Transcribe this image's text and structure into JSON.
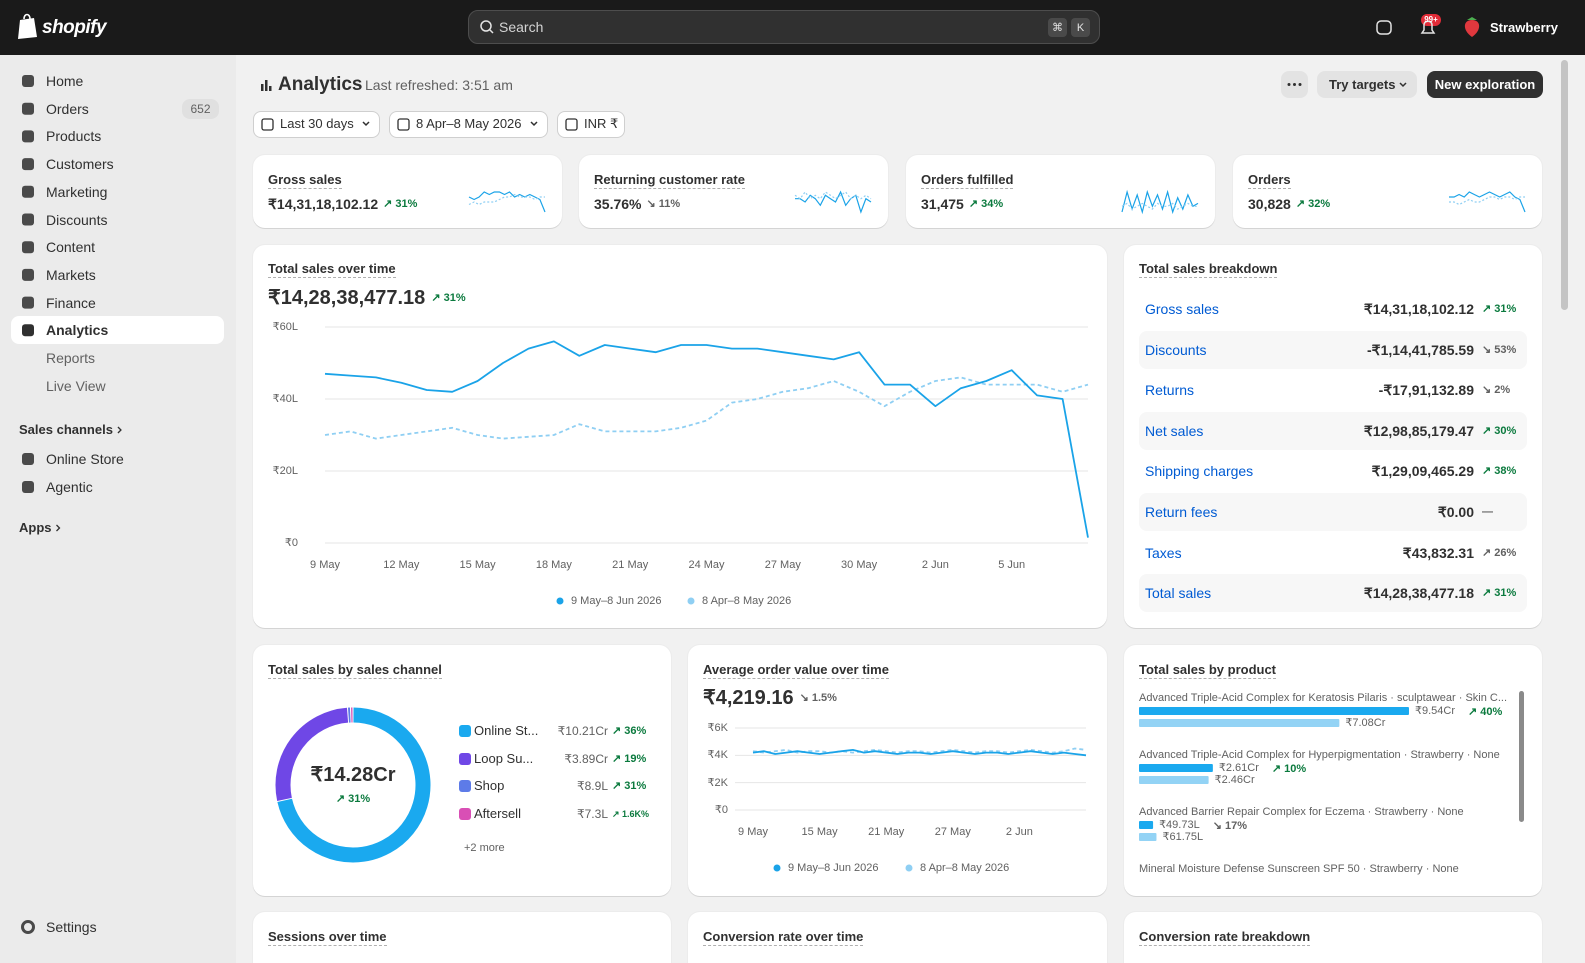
{
  "topbar": {
    "brand": "shopify",
    "search_placeholder": "Search",
    "shortcut": [
      "⌘",
      "K"
    ],
    "notification_badge": "99+",
    "store_name": "Strawberry"
  },
  "sidebar": {
    "nav": [
      {
        "label": "Home"
      },
      {
        "label": "Orders",
        "count": "652"
      },
      {
        "label": "Products"
      },
      {
        "label": "Customers"
      },
      {
        "label": "Marketing"
      },
      {
        "label": "Discounts"
      },
      {
        "label": "Content"
      },
      {
        "label": "Markets"
      },
      {
        "label": "Finance"
      },
      {
        "label": "Analytics",
        "active": true
      }
    ],
    "analytics_sub": [
      "Reports",
      "Live View"
    ],
    "sales_channels_heading": "Sales channels",
    "sales_channels": [
      "Online Store",
      "Agentic"
    ],
    "apps_heading": "Apps",
    "settings": "Settings"
  },
  "header": {
    "title": "Analytics",
    "last_refreshed": "Last refreshed: 3:51 am",
    "buttons": [
      "Try targets",
      "New exploration"
    ]
  },
  "filters": [
    "Last 30 days",
    "8 Apr–8 May 2026",
    "INR ₹"
  ],
  "kpis": [
    {
      "label": "Gross sales",
      "value": "₹14,31,18,102.12",
      "change": "↗ 31%",
      "tone": "good",
      "spark": {
        "current": [
          0.6,
          0.55,
          0.6,
          0.7,
          0.65,
          0.7,
          0.7,
          0.65,
          0.7,
          0.6,
          0.65,
          0.6,
          0.65,
          0.6,
          0.55,
          0.3
        ],
        "previous": [
          0.45,
          0.5,
          0.45,
          0.5,
          0.5,
          0.5,
          0.55,
          0.6,
          0.6,
          0.65,
          0.6,
          0.6,
          0.6,
          0.55,
          0.6,
          0.6
        ]
      }
    },
    {
      "label": "Returning customer rate",
      "value": "35.76%",
      "change": "↘ 11%",
      "tone": "neutral",
      "spark": {
        "current": [
          0.5,
          0.5,
          0.45,
          0.55,
          0.5,
          0.4,
          0.55,
          0.5,
          0.45,
          0.6,
          0.4,
          0.5,
          0.55,
          0.3,
          0.5,
          0.45
        ],
        "previous": [
          0.55,
          0.5,
          0.6,
          0.5,
          0.55,
          0.5,
          0.6,
          0.55,
          0.5,
          0.55,
          0.6,
          0.5,
          0.55,
          0.5,
          0.55,
          0.5
        ]
      }
    },
    {
      "label": "Orders fulfilled",
      "value": "31,475",
      "change": "↗ 34%",
      "tone": "good",
      "spark": {
        "current": [
          0.2,
          0.9,
          0.3,
          0.8,
          0.2,
          0.9,
          0.4,
          0.8,
          0.3,
          0.9,
          0.2,
          0.7,
          0.3,
          0.8,
          0.4,
          0.5
        ],
        "previous": [
          0.4,
          0.5,
          0.3,
          0.4,
          0.5,
          0.4,
          0.3,
          0.5,
          0.4,
          0.4,
          0.5,
          0.3,
          0.4,
          0.5,
          0.4,
          0.4
        ]
      }
    },
    {
      "label": "Orders",
      "value": "30,828",
      "change": "↗ 32%",
      "tone": "good",
      "spark": {
        "current": [
          0.6,
          0.6,
          0.65,
          0.6,
          0.7,
          0.65,
          0.6,
          0.65,
          0.7,
          0.65,
          0.6,
          0.65,
          0.7,
          0.6,
          0.55,
          0.3
        ],
        "previous": [
          0.5,
          0.5,
          0.45,
          0.5,
          0.55,
          0.5,
          0.5,
          0.55,
          0.6,
          0.6,
          0.55,
          0.6,
          0.6,
          0.55,
          0.6,
          0.6
        ]
      }
    }
  ],
  "total_sales_over_time": {
    "title": "Total sales over time",
    "value": "₹14,28,38,477.18",
    "change": "↗ 31%",
    "tone": "good",
    "chart": {
      "type": "line",
      "categories": [
        "9 May",
        null,
        null,
        "12 May",
        null,
        null,
        "15 May",
        null,
        null,
        "18 May",
        null,
        null,
        "21 May",
        null,
        null,
        "24 May",
        null,
        null,
        "27 May",
        null,
        null,
        "30 May",
        null,
        null,
        "2 Jun",
        null,
        null,
        "5 Jun",
        null,
        null,
        null
      ],
      "ylim": [
        0,
        60
      ],
      "yticks": [
        {
          "value": 0,
          "label": "₹0"
        },
        {
          "value": 20,
          "label": "₹20L"
        },
        {
          "value": 40,
          "label": "₹40L"
        },
        {
          "value": 60,
          "label": "₹60L"
        }
      ],
      "grid": true,
      "series": [
        {
          "name": "9 May–8 Jun 2026",
          "color": "#1aa3e8",
          "style": "solid",
          "values": [
            47,
            46.5,
            46,
            44.5,
            42.5,
            42,
            45,
            50,
            54,
            56,
            52,
            55,
            54,
            53,
            55,
            55,
            54,
            54,
            53,
            52,
            51,
            53,
            44,
            44,
            38,
            43,
            45,
            48,
            41,
            40,
            1.5
          ]
        },
        {
          "name": "8 Apr–8 May 2026",
          "color": "#8fcff3",
          "style": "dashed",
          "values": [
            30,
            31,
            29,
            30,
            31,
            32,
            30,
            29,
            29.5,
            30,
            33,
            31,
            31,
            31,
            32,
            34,
            39,
            40,
            42,
            43,
            45,
            42,
            38,
            42,
            45,
            46,
            44,
            44,
            44,
            42,
            44
          ]
        }
      ]
    }
  },
  "total_sales_breakdown": {
    "title": "Total sales breakdown",
    "rows": [
      {
        "label": "Gross sales",
        "value": "₹14,31,18,102.12",
        "change": "↗ 31%",
        "tone": "good"
      },
      {
        "label": "Discounts",
        "value": "-₹1,14,41,785.59",
        "change": "↘ 53%",
        "tone": "neutral"
      },
      {
        "label": "Returns",
        "value": "-₹17,91,132.89",
        "change": "↘ 2%",
        "tone": "neutral"
      },
      {
        "label": "Net sales",
        "value": "₹12,98,85,179.47",
        "change": "↗ 30%",
        "tone": "good"
      },
      {
        "label": "Shipping charges",
        "value": "₹1,29,09,465.29",
        "change": "↗ 38%",
        "tone": "good"
      },
      {
        "label": "Return fees",
        "value": "₹0.00",
        "change": "—",
        "tone": "neutral"
      },
      {
        "label": "Taxes",
        "value": "₹43,832.31",
        "change": "↗ 26%",
        "tone": "neutral"
      },
      {
        "label": "Total sales",
        "value": "₹14,28,38,477.18",
        "change": "↗ 31%",
        "tone": "good"
      }
    ]
  },
  "sales_by_channel": {
    "title": "Total sales by sales channel",
    "total": "₹14.28Cr",
    "total_change": "↗ 31%",
    "chart": {
      "type": "pie",
      "donut": true,
      "categories": [
        "Online St...",
        "Loop Su...",
        "Shop",
        "Aftersell"
      ],
      "values": [
        10.21,
        3.89,
        0.089,
        0.073
      ],
      "value_labels": [
        "₹10.21Cr",
        "₹3.89Cr",
        "₹8.9L",
        "₹7.3L"
      ],
      "changes": [
        "↗ 36%",
        "↗ 19%",
        "↗ 31%",
        "↗ 1.6K%"
      ],
      "colors": [
        "#1aa9ef",
        "#6f47e6",
        "#5d7be8",
        "#d94fb5"
      ]
    },
    "more": "+2 more"
  },
  "aov_over_time": {
    "title": "Average order value over time",
    "value": "₹4,219.16",
    "change": "↘ 1.5%",
    "tone": "neutral",
    "chart": {
      "type": "line",
      "categories": [
        "9 May",
        null,
        null,
        null,
        null,
        null,
        "15 May",
        null,
        null,
        null,
        null,
        null,
        "21 May",
        null,
        null,
        null,
        null,
        null,
        "27 May",
        null,
        null,
        null,
        null,
        null,
        "2 Jun",
        null,
        null,
        null,
        null,
        null,
        null
      ],
      "ylim": [
        0,
        6
      ],
      "yticks": [
        {
          "value": 0,
          "label": "₹0"
        },
        {
          "value": 2,
          "label": "₹2K"
        },
        {
          "value": 4,
          "label": "₹4K"
        },
        {
          "value": 6,
          "label": "₹6K"
        }
      ],
      "grid": true,
      "series": [
        {
          "name": "9 May–8 Jun 2026",
          "color": "#1aa3e8",
          "style": "solid",
          "values": [
            4.2,
            4.3,
            4.1,
            4.2,
            4.3,
            4.2,
            4.1,
            4.2,
            4.3,
            4.4,
            4.2,
            4.3,
            4.2,
            4.1,
            4.2,
            4.2,
            4.1,
            4.2,
            4.3,
            4.2,
            4.1,
            4.2,
            4.2,
            4.1,
            4.2,
            4.3,
            4.2,
            4.1,
            4.2,
            4.1,
            4.0
          ]
        },
        {
          "name": "8 Apr–8 May 2026",
          "color": "#8fcff3",
          "style": "dashed",
          "values": [
            4.3,
            4.2,
            4.3,
            4.4,
            4.2,
            4.3,
            4.3,
            4.2,
            4.3,
            4.2,
            4.3,
            4.4,
            4.3,
            4.2,
            4.3,
            4.3,
            4.2,
            4.3,
            4.4,
            4.3,
            4.2,
            4.3,
            4.3,
            4.2,
            4.3,
            4.4,
            4.3,
            4.2,
            4.3,
            4.5,
            4.4
          ]
        }
      ]
    }
  },
  "sales_by_product": {
    "title": "Total sales by product",
    "chart": {
      "type": "bar",
      "orientation": "horizontal",
      "categories": [
        "Advanced Triple-Acid Complex for Keratosis Pilaris · sculptawear · Skin C...",
        "Advanced Triple-Acid Complex for Hyperpigmentation · Strawberry · None",
        "Advanced Barrier Repair Complex for Eczema · Strawberry · None",
        "Mineral Moisture Defense Sunscreen SPF 50 · Strawberry · None"
      ],
      "series": [
        {
          "color": "#1aa9ef",
          "values": [
            9.54,
            2.61,
            0.4973,
            null
          ],
          "value_labels": [
            "₹9.54Cr",
            "₹2.61Cr",
            "₹49.73L",
            null
          ]
        },
        {
          "color": "#93d3f5",
          "values": [
            7.08,
            2.46,
            0.6175,
            null
          ],
          "value_labels": [
            "₹7.08Cr",
            "₹2.46Cr",
            "₹61.75L",
            null
          ]
        }
      ],
      "changes": [
        "↗ 40%",
        "↗ 10%",
        "↘ 17%",
        null
      ],
      "tones": [
        "good",
        "good",
        "neutral",
        null
      ]
    }
  },
  "bottom_cards": [
    "Sessions over time",
    "Conversion rate over time",
    "Conversion rate breakdown"
  ]
}
